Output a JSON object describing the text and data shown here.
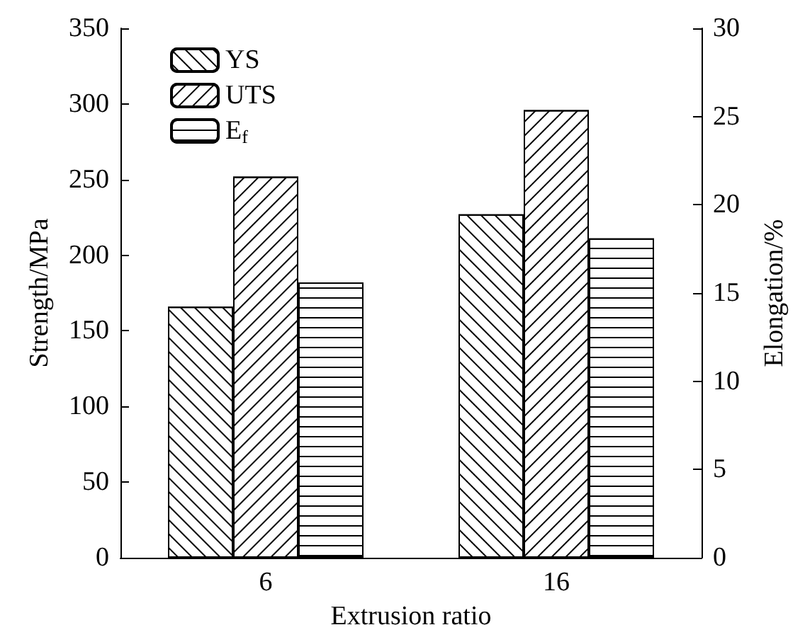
{
  "chart_data": {
    "type": "bar",
    "xlabel": "Extrusion ratio",
    "ylabel": "Strength/MPa",
    "y2label": "Elongation/%",
    "categories": [
      "6",
      "16"
    ],
    "series": [
      {
        "name": "YS",
        "color": "#000000",
        "values": [
          166,
          227
        ]
      },
      {
        "name": "UTS",
        "color": "#000000",
        "values": [
          252,
          296
        ]
      },
      {
        "name": "E$_{f}$",
        "color": "#000000",
        "values": [
          15.6,
          18.1
        ],
        "axis": "y2"
      }
    ],
    "ylim": [
      0,
      350
    ],
    "yticks": [
      0,
      50,
      100,
      150,
      200,
      250,
      300,
      350
    ],
    "y2lim": [
      0,
      30
    ],
    "y2ticks": [
      0,
      5,
      10,
      15,
      20,
      25,
      30
    ],
    "legend": "top left",
    "grid": false
  }
}
